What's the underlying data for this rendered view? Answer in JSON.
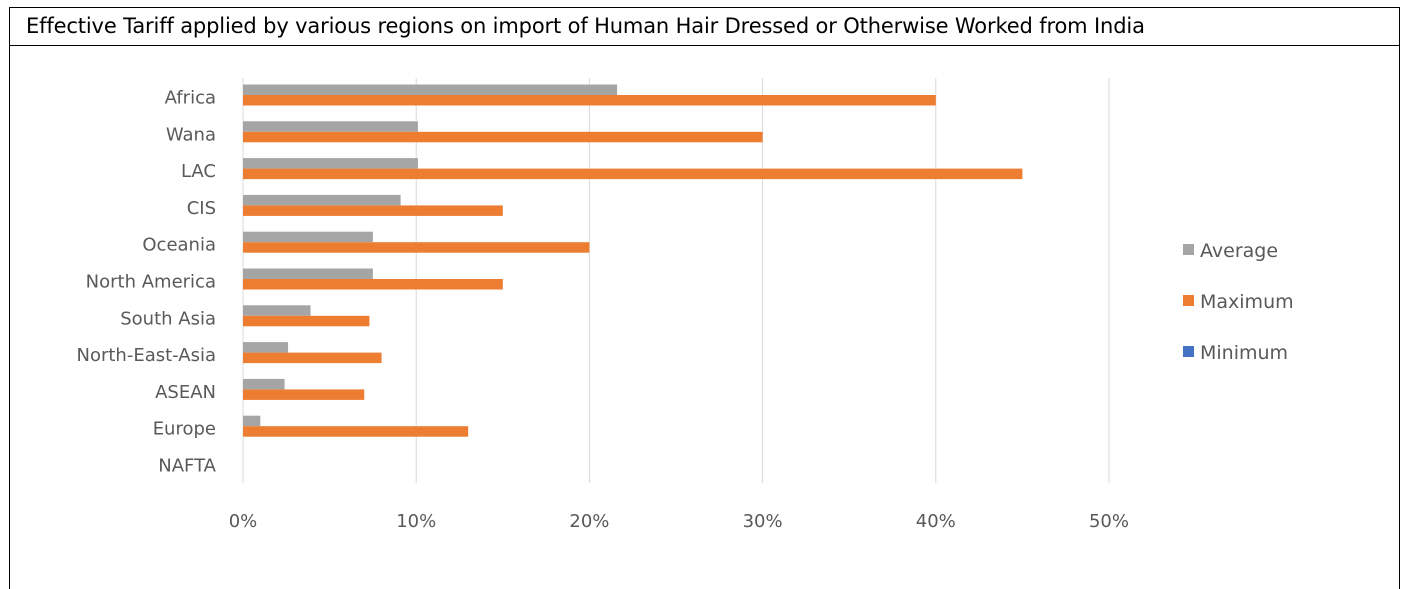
{
  "chart_data": {
    "type": "bar",
    "orientation": "horizontal",
    "title": "Effective Tariff applied by various regions on import of Human Hair Dressed or Otherwise Worked from India",
    "categories": [
      "Africa",
      "Wana",
      "LAC",
      "CIS",
      "Oceania",
      "North America",
      "South Asia",
      "North-East-Asia",
      "ASEAN",
      "Europe",
      "NAFTA"
    ],
    "series": [
      {
        "name": "Average",
        "color": "#a5a5a5",
        "values": [
          21.6,
          10.1,
          10.1,
          9.1,
          7.5,
          7.5,
          3.9,
          2.6,
          2.4,
          1.0,
          0
        ]
      },
      {
        "name": "Maximum",
        "color": "#ed7d31",
        "values": [
          40,
          30,
          45,
          15,
          20,
          15,
          7.3,
          8,
          7,
          13,
          0
        ]
      },
      {
        "name": "Minimum",
        "color": "#4472c4",
        "values": [
          0,
          0,
          0,
          0,
          0,
          0,
          0,
          0,
          0,
          0,
          0
        ]
      }
    ],
    "xlim": [
      0,
      50
    ],
    "x_ticks": [
      "0%",
      "10%",
      "20%",
      "30%",
      "40%",
      "50%"
    ],
    "grid": true,
    "legend_position": "right"
  }
}
